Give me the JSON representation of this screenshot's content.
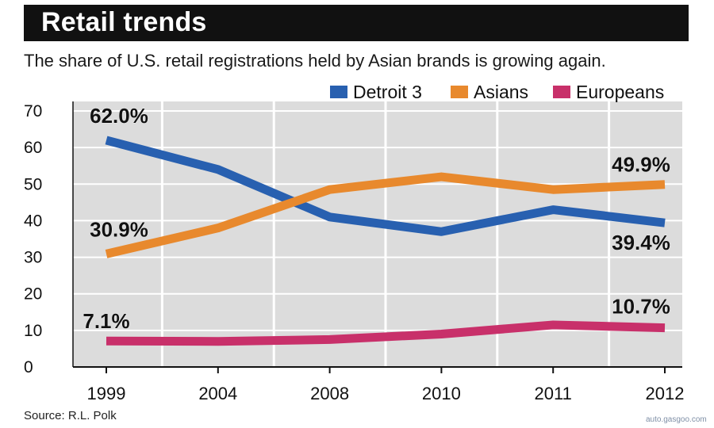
{
  "header": {
    "title": "Retail trends",
    "subtitle": "The share of U.S. retail registrations held by Asian brands is growing again."
  },
  "source": "Source: R.L. Polk",
  "watermark": {
    "text": "auto.gasgoo.com"
  },
  "colors": {
    "detroit": "#2860b0",
    "asians": "#e8892d",
    "europeans": "#c8306a",
    "plot_bg": "#dcdcdc",
    "title_bg": "#111111"
  },
  "chart_data": {
    "type": "line",
    "title": "Retail trends",
    "subtitle": "The share of U.S. retail registrations held by Asian brands is growing again.",
    "xlabel": "",
    "ylabel": "",
    "categories": [
      "1999",
      "2004",
      "2008",
      "2010",
      "2011",
      "2012"
    ],
    "ylim": [
      0,
      70
    ],
    "yticks": [
      0,
      10,
      20,
      30,
      40,
      50,
      60,
      70
    ],
    "grid": true,
    "legend_position": "top-right",
    "series": [
      {
        "name": "Detroit 3",
        "color": "#2860b0",
        "values": [
          62.0,
          54,
          41,
          37,
          43,
          39.4
        ]
      },
      {
        "name": "Asians",
        "color": "#e8892d",
        "values": [
          30.9,
          38,
          48.5,
          52,
          48.5,
          49.9
        ]
      },
      {
        "name": "Europeans",
        "color": "#c8306a",
        "values": [
          7.1,
          7,
          7.5,
          9,
          11.5,
          10.7
        ]
      }
    ],
    "annotations": [
      {
        "series": "Detroit 3",
        "index": 0,
        "text": "62.0%"
      },
      {
        "series": "Detroit 3",
        "index": 5,
        "text": "39.4%"
      },
      {
        "series": "Asians",
        "index": 0,
        "text": "30.9%"
      },
      {
        "series": "Asians",
        "index": 5,
        "text": "49.9%"
      },
      {
        "series": "Europeans",
        "index": 0,
        "text": "7.1%"
      },
      {
        "series": "Europeans",
        "index": 5,
        "text": "10.7%"
      }
    ]
  }
}
